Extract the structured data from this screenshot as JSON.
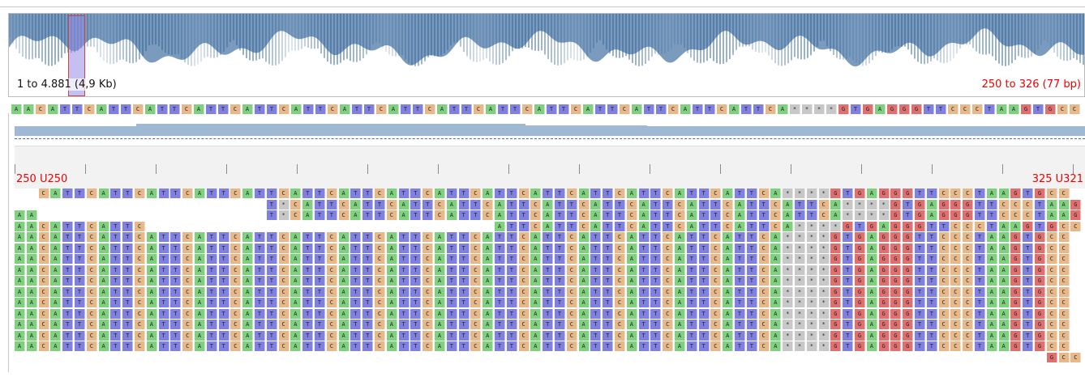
{
  "coverage": {
    "range_label": "1 to 4.881 (4,9 Kb)",
    "visible_range": "250 to 326 (77 bp)"
  },
  "reference": {
    "sequence": "AACATTCATTCATTCATTCATTCATTCATTCATTCATTCATTCATTCATTCATTCATTCATTCA****GTGAGGGTTCCCTAAGTGCC"
  },
  "ruler": {
    "left_label": "250 U250",
    "right_label": "325 U321"
  },
  "reads": [
    {
      "row": 0,
      "start": 2,
      "end": 89,
      "seq": "CATTCATTCATTCATTCATTCATTCATTCATTCATTCATTCATTCATTCATTCATTCATTCA****GTGAGGGTTCCCTAAGTGCC"
    },
    {
      "row": 1,
      "start": 21,
      "end": 89,
      "seq": "T*CATTCATTCATTCATTCATTCATTCATTCATTCATTCATTCATTCA****GTGAGGGTTCCCTAAGTGCC"
    },
    {
      "row": 2,
      "start": 0,
      "end": 2,
      "seq": "AA"
    },
    {
      "row": 2,
      "start": 21,
      "end": 89,
      "seq": "T*CATTCATTCATTCATTCATTCATTCATTCATTCATTCATTCATTCA****GTGAGGGTTCCCTAAGTGCC"
    },
    {
      "row": 3,
      "start": 0,
      "end": 11,
      "seq": "AACATTCATTC"
    },
    {
      "row": 3,
      "start": 40,
      "end": 89,
      "seq": "ATTCATTCATTCATTCATTCATTCA****GTGAGGGTTCCCTAAGTGCC"
    },
    {
      "row": 4,
      "start": 0,
      "end": 89,
      "seq": "AACATTCATTCATTCATTCATTCATTCATTCATTCATTCATTCATTCATTCATTCATTCATTCA****GTGAGGGTTCCCTAAGTGCC"
    },
    {
      "row": 5,
      "start": 0,
      "end": 89,
      "seq": "AACATTCATTCATTCATTCATTCATTCATTCATTCATTCATTCATTCATTCATTCATTCATTCA****GTGAGGGTTCCCTAAGTGCC"
    },
    {
      "row": 6,
      "start": 0,
      "end": 89,
      "seq": "AACATTCATTCATTCATTCATTCATTCATTCATTCATTCATTCATTCATTCATTCATTCATTCA****GTGAGGGTTCCCTAAGTGCC"
    },
    {
      "row": 7,
      "start": 0,
      "end": 89,
      "seq": "AACATTCATTCATTCATTCATTCATTCATTCATTCATTCATTCATTCATTCATTCATTCATTCA****GTGAGGGTTCCCTAAGTGCC"
    },
    {
      "row": 8,
      "start": 0,
      "end": 89,
      "seq": "AACATTCATTCATTCATTCATTCATTCATTCATTCATTCATTCATTCATTCATTCATTCATTCA****GTGAGGGTTCCCTAAGTGCC"
    },
    {
      "row": 9,
      "start": 0,
      "end": 89,
      "seq": "AACATTCATTCATTCATTCATTCATTCATTCATTCATTCATTCATTCATTCATTCATTCATTCA****GTGAGGGTTCCCTAAGTGCC"
    },
    {
      "row": 10,
      "start": 0,
      "end": 89,
      "seq": "AACATTCATTCATTCATTCATTCATTCATTCATTCATTCATTCATTCATTCATTCATTCATTCA****GTGAGGGTTCCCTAAGTGCC"
    },
    {
      "row": 11,
      "start": 0,
      "end": 89,
      "seq": "AACATTCATTCATTCATTCATTCATTCATTCATTCATTCATTCATTCATTCATTCATTCATTCA****GTGAGGGTTCCCTAAGTGCC"
    },
    {
      "row": 12,
      "start": 0,
      "end": 89,
      "seq": "AACATTCATTCATTCATTCATTCATTCATTCATTCATTCATTCATTCATTCATTCATTCATTCA****GTGAGGGTTCCCTAAGTGCC"
    },
    {
      "row": 13,
      "start": 0,
      "end": 89,
      "seq": "AACATTCATTCATTCATTCATTCATTCATTCATTCATTCATTCATTCATTCATTCATTCATTCA****GTGAGGGTTCCCTAAGTGCC"
    },
    {
      "row": 14,
      "start": 0,
      "end": 89,
      "seq": "AACATTCATTCATTCATTCATTCATTCATTCATTCATTCATTCATTCATTCATTCATTCATTCA****GTGAGGGTTCCCTAAGTGCC"
    },
    {
      "row": 15,
      "start": 86,
      "end": 89,
      "seq": "GCC"
    }
  ],
  "colors": {
    "A": "#7fd17f",
    "C": "#e6b88a",
    "G": "#e07070",
    "T": "#8080e0",
    "gap": "#c8c8c8",
    "band": "#9fb8d4",
    "coverage": "#4f79a8"
  }
}
